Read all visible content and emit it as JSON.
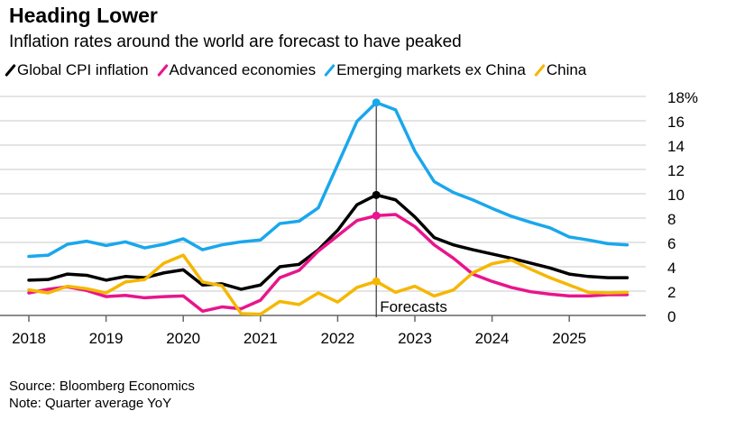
{
  "chart_data": {
    "type": "line",
    "title": "Heading Lower",
    "subtitle": "Inflation rates around the world are forecast to have peaked",
    "xlabel": "",
    "ylabel": "",
    "x_ticks": [
      "2018",
      "2019",
      "2020",
      "2021",
      "2022",
      "2023",
      "2024",
      "2025"
    ],
    "y_ticks": [
      "0",
      "2",
      "4",
      "6",
      "8",
      "10",
      "12",
      "14",
      "16",
      "18%"
    ],
    "ylim": [
      0,
      18
    ],
    "xlim": [
      2018.0,
      2025.75
    ],
    "x_start": 2018.0,
    "x_step_years": 0.25,
    "grid": true,
    "legend_position": "top",
    "annotation": {
      "label": "Forecasts",
      "x": 2022.5
    },
    "series": [
      {
        "name": "Global CPI inflation",
        "color": "#000000",
        "values": [
          2.9,
          2.95,
          3.4,
          3.3,
          2.9,
          3.2,
          3.1,
          3.5,
          3.75,
          2.5,
          2.6,
          2.15,
          2.5,
          4.0,
          4.2,
          5.4,
          7.0,
          9.1,
          9.9,
          9.5,
          8.1,
          6.4,
          5.8,
          5.4,
          5.05,
          4.7,
          4.3,
          3.9,
          3.4,
          3.2,
          3.1,
          3.1
        ]
      },
      {
        "name": "Advanced economies",
        "color": "#e8158c",
        "values": [
          1.85,
          2.15,
          2.35,
          2.05,
          1.55,
          1.65,
          1.45,
          1.55,
          1.6,
          0.35,
          0.7,
          0.55,
          1.25,
          3.1,
          3.7,
          5.3,
          6.55,
          7.8,
          8.2,
          8.3,
          7.3,
          5.8,
          4.7,
          3.4,
          2.8,
          2.3,
          1.95,
          1.75,
          1.6,
          1.6,
          1.7,
          1.7
        ]
      },
      {
        "name": "Emerging markets ex China",
        "color": "#1aa7ec",
        "values": [
          4.85,
          4.95,
          5.85,
          6.1,
          5.75,
          6.05,
          5.55,
          5.85,
          6.3,
          5.4,
          5.8,
          6.05,
          6.2,
          7.55,
          7.75,
          8.85,
          12.4,
          15.95,
          17.5,
          16.9,
          13.5,
          11.0,
          10.1,
          9.5,
          8.8,
          8.15,
          7.65,
          7.2,
          6.45,
          6.2,
          5.9,
          5.8
        ]
      },
      {
        "name": "China",
        "color": "#f5b700",
        "values": [
          2.1,
          1.85,
          2.4,
          2.2,
          1.85,
          2.75,
          2.95,
          4.3,
          4.95,
          2.75,
          2.45,
          0.15,
          0.1,
          1.15,
          0.9,
          1.85,
          1.1,
          2.3,
          2.8,
          1.9,
          2.4,
          1.6,
          2.1,
          3.5,
          4.25,
          4.55,
          3.8,
          3.1,
          2.5,
          1.9,
          1.85,
          1.9
        ]
      }
    ],
    "markers_at": 2022.5
  },
  "footer": {
    "source": "Source: Bloomberg Economics",
    "note": "Note: Quarter average YoY"
  }
}
